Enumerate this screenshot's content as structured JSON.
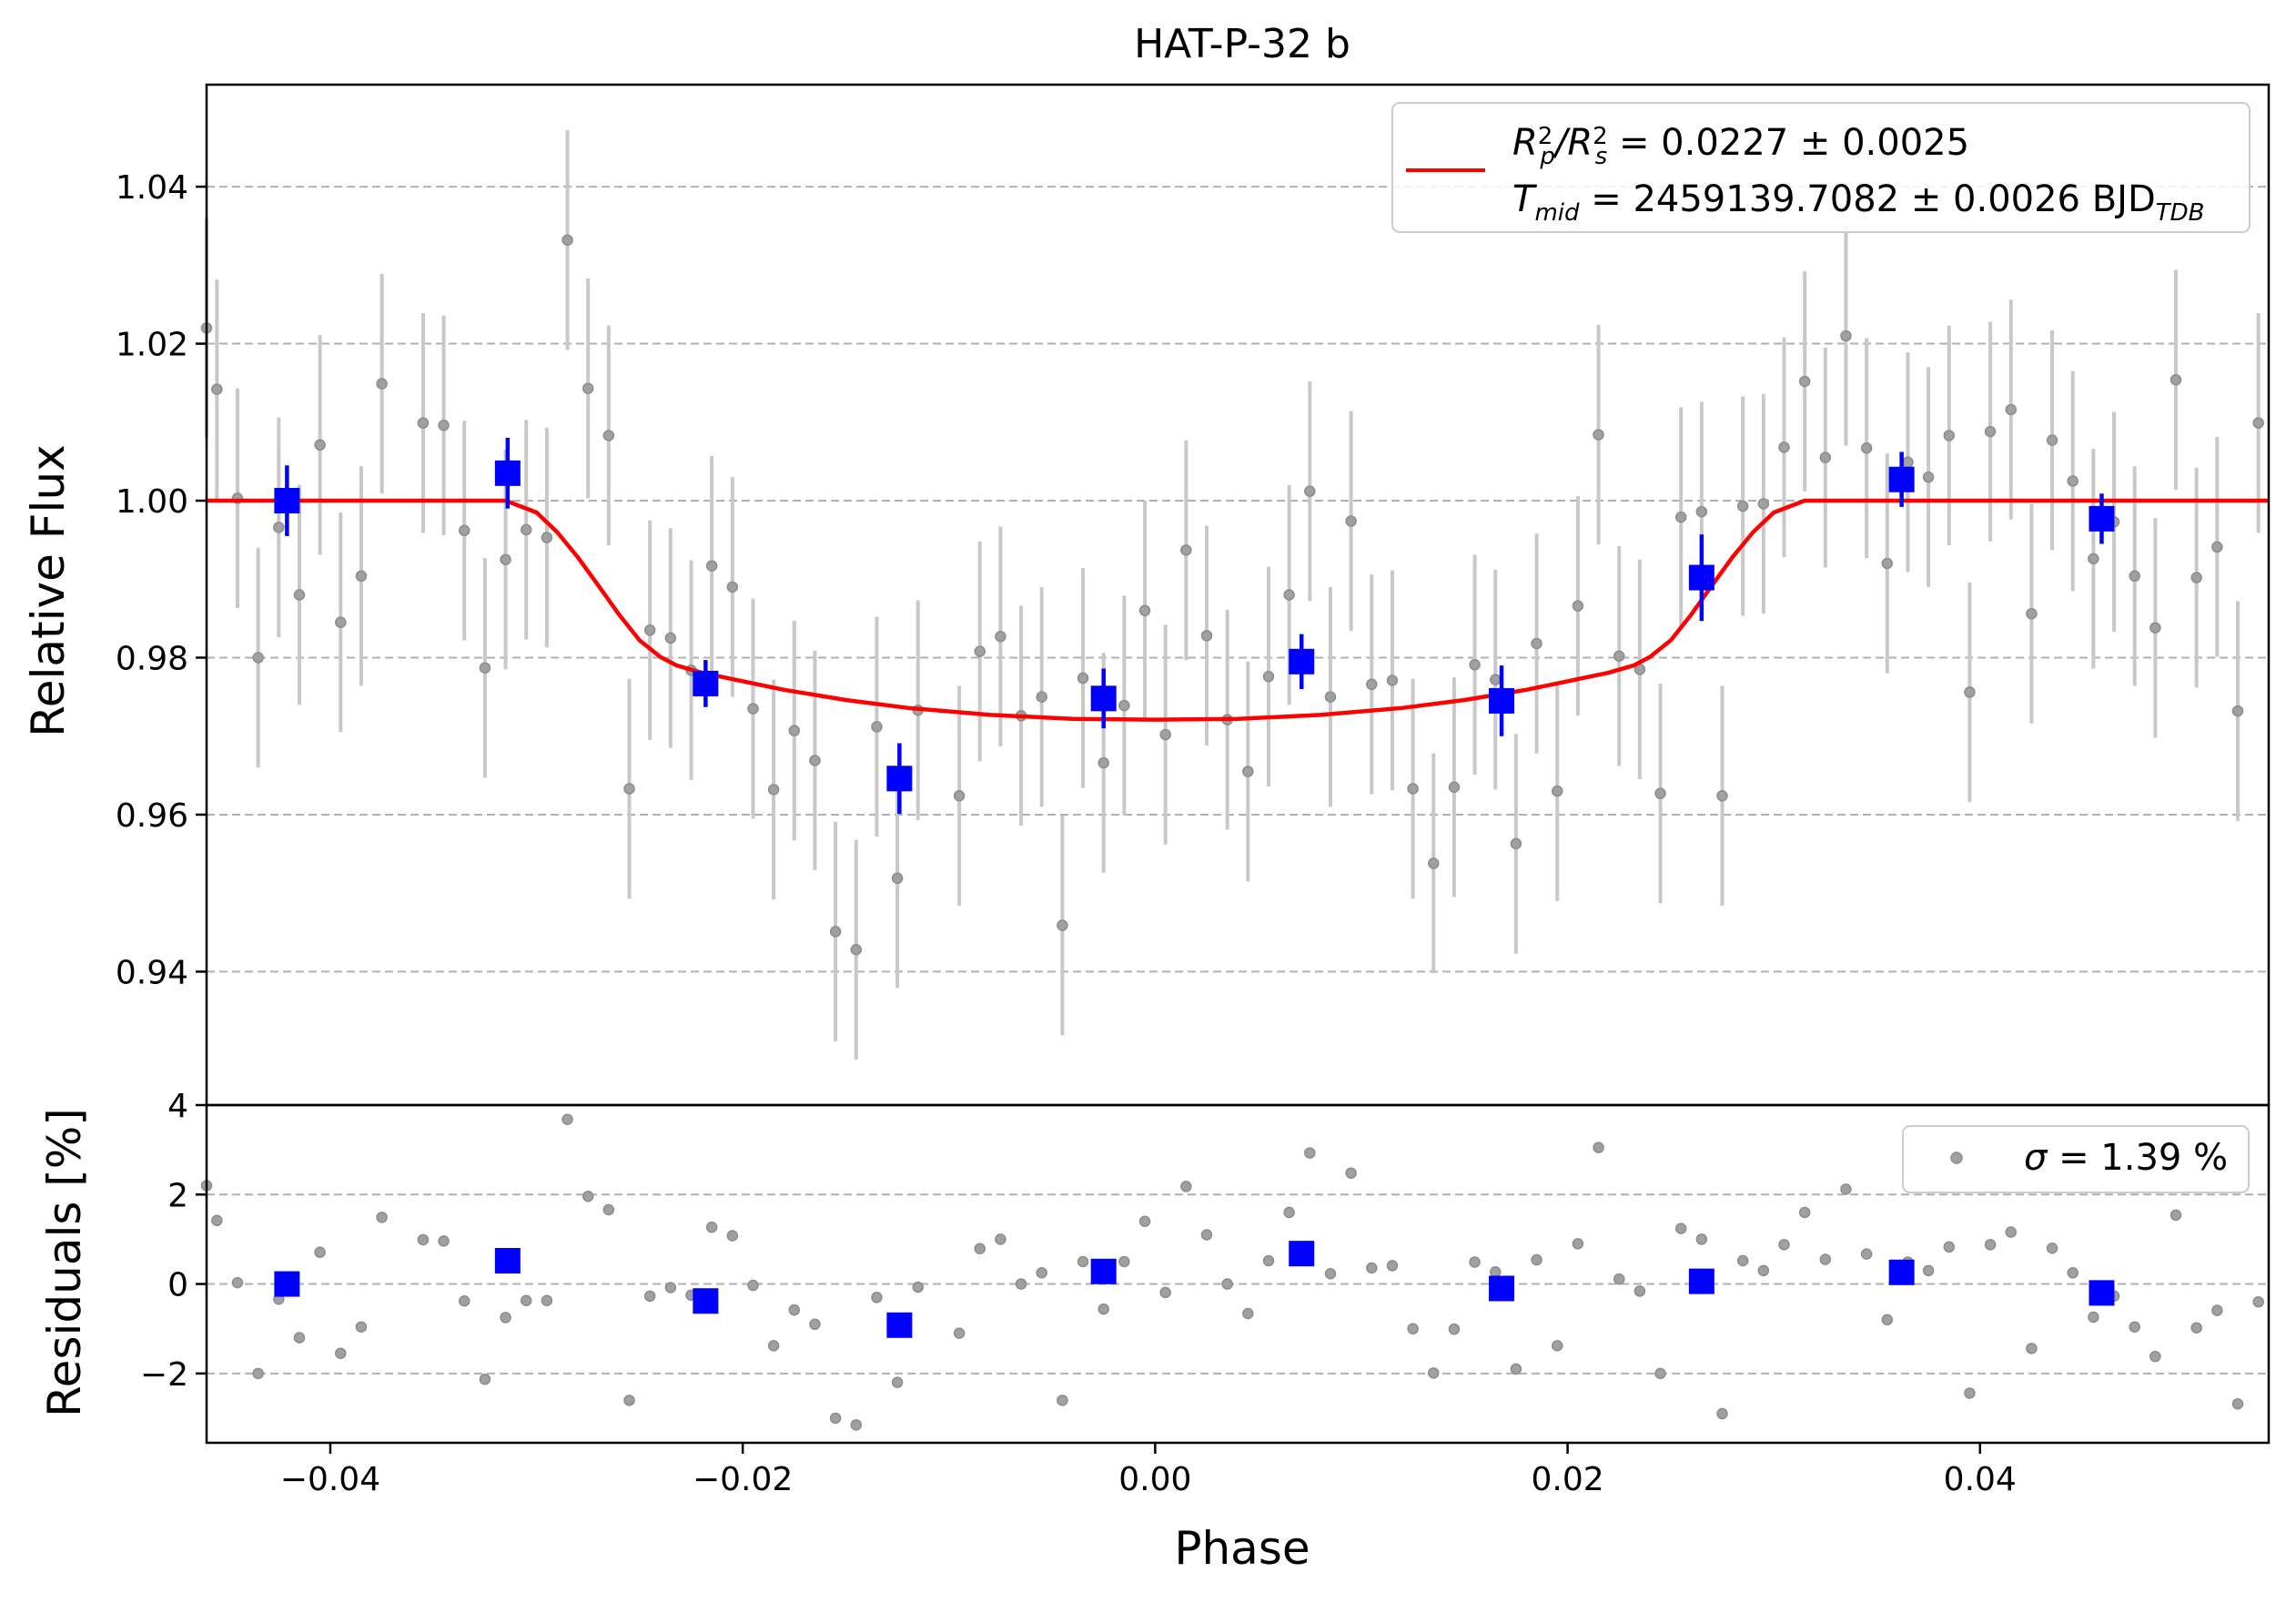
{
  "chart_data": [
    {
      "type": "scatter",
      "title": "HAT-P-32 b",
      "xlabel": "",
      "ylabel": "Relative Flux",
      "xlim": [
        -0.046,
        0.054
      ],
      "ylim": [
        0.923,
        1.053
      ],
      "xticks": [
        -0.04,
        -0.02,
        0.0,
        0.02,
        0.04
      ],
      "xtick_labels": [
        "−0.04",
        "−0.02",
        "0.00",
        "0.02",
        "0.04"
      ],
      "yticks": [
        0.94,
        0.96,
        0.98,
        1.0,
        1.02,
        1.04
      ],
      "ytick_labels": [
        "0.94",
        "0.96",
        "0.98",
        "1.00",
        "1.02",
        "1.04"
      ],
      "grid": "horizontal dashed",
      "legend": {
        "placement": "top-right",
        "line1_a": "R",
        "line1_b": "/R",
        "line1_c": " = 0.0227 ± 0.0025",
        "line1_sub1": "p",
        "line1_sup1": "2",
        "line1_sub2": "s",
        "line1_sup2": "2",
        "line2_a": "T",
        "line2_sub1": "mid",
        "line2_b": " = 2459139.7082 ± 0.0026 BJD",
        "line2_sub2": "TDB"
      },
      "colors": {
        "raw": "#a0a0a0",
        "errorbar": "#c8c8c8",
        "binned": "#0000ff",
        "model": "#ff0000",
        "grid": "#b0b0b0"
      },
      "series": [
        {
          "type": "scatter-errorbar",
          "x": [
            -0.046,
            -0.0455,
            -0.0445,
            -0.0435,
            -0.0425,
            -0.0415,
            -0.0405,
            -0.0395,
            -0.0385,
            -0.0375,
            -0.0355,
            -0.0345,
            -0.0335,
            -0.0325,
            -0.0315,
            -0.0305,
            -0.0295,
            -0.0285,
            -0.0275,
            -0.0265,
            -0.0255,
            -0.0245,
            -0.0235,
            -0.0225,
            -0.0215,
            -0.0205,
            -0.0195,
            -0.0185,
            -0.0175,
            -0.0165,
            -0.0155,
            -0.0145,
            -0.0135,
            -0.0125,
            -0.0115,
            -0.0095,
            -0.0085,
            -0.0075,
            -0.0065,
            -0.0055,
            -0.0045,
            -0.0035,
            -0.0025,
            -0.0015,
            -0.0005,
            0.0005,
            0.0015,
            0.0025,
            0.0035,
            0.0045,
            0.0055,
            0.0065,
            0.0075,
            0.0085,
            0.0095,
            0.0105,
            0.0115,
            0.0125,
            0.0135,
            0.0145,
            0.0155,
            0.0165,
            0.0175,
            0.0185,
            0.0195,
            0.0205,
            0.0215,
            0.0225,
            0.0235,
            0.0245,
            0.0255,
            0.0265,
            0.0275,
            0.0285,
            0.0295,
            0.0305,
            0.0315,
            0.0325,
            0.0335,
            0.0345,
            0.0355,
            0.0365,
            0.0375,
            0.0385,
            0.0395,
            0.0405,
            0.0415,
            0.0425,
            0.0435,
            0.0445,
            0.0455,
            0.0465,
            0.0475,
            0.0485,
            0.0495,
            0.0505,
            0.0515,
            0.0525,
            0.0535
          ],
          "y": [
            1.022,
            1.0142,
            1.0003,
            0.98,
            0.9966,
            0.988,
            1.0071,
            0.9845,
            0.9904,
            1.0149,
            1.0099,
            1.0096,
            0.9962,
            0.9787,
            0.9925,
            0.9963,
            0.9953,
            1.0332,
            1.0143,
            1.0083,
            0.9633,
            0.9835,
            0.9825,
            0.9784,
            0.9917,
            0.989,
            0.9735,
            0.9632,
            0.9707,
            0.9669,
            0.9451,
            0.9428,
            0.9712,
            0.9519,
            0.9733,
            0.9624,
            0.9808,
            0.9827,
            0.9726,
            0.975,
            0.9459,
            0.9774,
            0.9666,
            0.9739,
            0.986,
            0.9702,
            0.9937,
            0.9828,
            0.9721,
            0.9655,
            0.9776,
            0.988,
            1.0012,
            0.975,
            0.9974,
            0.9766,
            0.9771,
            0.9633,
            0.9538,
            0.9635,
            0.9791,
            0.9772,
            0.9563,
            0.9818,
            0.963,
            0.9866,
            1.0084,
            0.9802,
            0.9785,
            0.9627,
            0.9979,
            0.9986,
            0.9624,
            0.9993,
            0.9996,
            1.0068,
            1.0152,
            1.0055,
            1.021,
            1.0067,
            0.992,
            1.0049,
            1.003,
            1.0083,
            0.9756,
            1.0088,
            1.0116,
            0.9856,
            1.0077,
            1.0025,
            0.9926,
            0.9973,
            0.9904,
            0.9838,
            1.0154,
            0.9902,
            0.9941,
            0.9732,
            1.0099
          ],
          "yerr": [
            0.014,
            0.014,
            0.014,
            0.014,
            0.014,
            0.014,
            0.014,
            0.014,
            0.014,
            0.014,
            0.014,
            0.014,
            0.014,
            0.014,
            0.014,
            0.014,
            0.014,
            0.014,
            0.014,
            0.014,
            0.014,
            0.014,
            0.014,
            0.014,
            0.014,
            0.014,
            0.014,
            0.014,
            0.014,
            0.014,
            0.014,
            0.014,
            0.014,
            0.014,
            0.014,
            0.014,
            0.014,
            0.014,
            0.014,
            0.014,
            0.014,
            0.014,
            0.014,
            0.014,
            0.014,
            0.014,
            0.014,
            0.014,
            0.014,
            0.014,
            0.014,
            0.014,
            0.014,
            0.014,
            0.014,
            0.014,
            0.014,
            0.014,
            0.014,
            0.014,
            0.014,
            0.014,
            0.014,
            0.014,
            0.014,
            0.014,
            0.014,
            0.014,
            0.014,
            0.014,
            0.014,
            0.014,
            0.014,
            0.014,
            0.014,
            0.014,
            0.014,
            0.014,
            0.014,
            0.014,
            0.014,
            0.014,
            0.014,
            0.014,
            0.014,
            0.014,
            0.014,
            0.014,
            0.014,
            0.014,
            0.014,
            0.014,
            0.014,
            0.014,
            0.014,
            0.014,
            0.014,
            0.014,
            0.014
          ]
        },
        {
          "type": "binned",
          "x": [
            -0.0421,
            -0.0314,
            -0.0218,
            -0.0124,
            -0.0025,
            0.0071,
            0.0168,
            0.0265,
            0.0362,
            0.0459
          ],
          "y": [
            1.0,
            1.0035,
            0.9767,
            0.9646,
            0.9748,
            0.9795,
            0.9745,
            0.9902,
            1.0027,
            0.9977
          ],
          "yerr": [
            0.0045,
            0.0045,
            0.003,
            0.0045,
            0.0038,
            0.0035,
            0.0045,
            0.0055,
            0.0035,
            0.0032
          ]
        },
        {
          "type": "line",
          "x": [
            -0.046,
            -0.0315,
            -0.03,
            -0.029,
            -0.028,
            -0.027,
            -0.026,
            -0.025,
            -0.024,
            -0.0232,
            -0.022,
            -0.02,
            -0.018,
            -0.015,
            -0.012,
            -0.008,
            -0.004,
            0.0,
            0.004,
            0.008,
            0.012,
            0.015,
            0.018,
            0.02,
            0.022,
            0.0232,
            0.024,
            0.025,
            0.026,
            0.027,
            0.028,
            0.029,
            0.03,
            0.0315,
            0.054
          ],
          "y": [
            1.0,
            1.0,
            0.9985,
            0.996,
            0.9928,
            0.9892,
            0.9855,
            0.9822,
            0.9801,
            0.979,
            0.9781,
            0.977,
            0.9759,
            0.9746,
            0.9736,
            0.9727,
            0.9722,
            0.9721,
            0.9722,
            0.9727,
            0.9736,
            0.9746,
            0.9759,
            0.977,
            0.9781,
            0.979,
            0.9801,
            0.9822,
            0.9855,
            0.9892,
            0.9928,
            0.996,
            0.9985,
            1.0,
            1.0
          ]
        }
      ]
    },
    {
      "type": "scatter",
      "title": "",
      "xlabel": "Phase",
      "ylabel": "Residuals [%]",
      "xlim": [
        -0.046,
        0.054
      ],
      "ylim": [
        -3.55,
        4.0
      ],
      "xticks": [
        -0.04,
        -0.02,
        0.0,
        0.02,
        0.04
      ],
      "xtick_labels": [
        "−0.04",
        "−0.02",
        "0.00",
        "0.02",
        "0.04"
      ],
      "yticks": [
        -2,
        0,
        2,
        4
      ],
      "ytick_labels": [
        "−2",
        "0",
        "2",
        "4"
      ],
      "grid": "horizontal dashed",
      "legend": {
        "placement": "top-right",
        "sigma_symbol": "σ",
        "sigma_text": " = 1.39 %"
      },
      "series": [
        {
          "type": "scatter",
          "x": [
            -0.046,
            -0.0455,
            -0.0445,
            -0.0435,
            -0.0425,
            -0.0415,
            -0.0405,
            -0.0395,
            -0.0385,
            -0.0375,
            -0.0355,
            -0.0345,
            -0.0335,
            -0.0325,
            -0.0315,
            -0.0305,
            -0.0295,
            -0.0285,
            -0.0275,
            -0.0265,
            -0.0255,
            -0.0245,
            -0.0235,
            -0.0225,
            -0.0215,
            -0.0205,
            -0.0195,
            -0.0185,
            -0.0175,
            -0.0165,
            -0.0155,
            -0.0145,
            -0.0135,
            -0.0125,
            -0.0115,
            -0.0095,
            -0.0085,
            -0.0075,
            -0.0065,
            -0.0055,
            -0.0045,
            -0.0035,
            -0.0025,
            -0.0015,
            -0.0005,
            0.0005,
            0.0015,
            0.0025,
            0.0035,
            0.0045,
            0.0055,
            0.0065,
            0.0075,
            0.0085,
            0.0095,
            0.0105,
            0.0115,
            0.0125,
            0.0135,
            0.0145,
            0.0155,
            0.0165,
            0.0175,
            0.0185,
            0.0195,
            0.0205,
            0.0215,
            0.0225,
            0.0235,
            0.0245,
            0.0255,
            0.0265,
            0.0275,
            0.0285,
            0.0295,
            0.0305,
            0.0315,
            0.0325,
            0.0335,
            0.0345,
            0.0355,
            0.0365,
            0.0375,
            0.0385,
            0.0395,
            0.0405,
            0.0415,
            0.0425,
            0.0435,
            0.0445,
            0.0455,
            0.0465,
            0.0475,
            0.0485,
            0.0495,
            0.0505,
            0.0515,
            0.0525,
            0.0535
          ],
          "y": [
            2.2,
            1.42,
            0.03,
            -2.0,
            -0.34,
            -1.2,
            0.71,
            -1.55,
            -0.96,
            1.49,
            0.99,
            0.96,
            -0.38,
            -2.13,
            -0.75,
            -0.37,
            -0.37,
            3.68,
            1.96,
            1.66,
            -2.6,
            -0.27,
            -0.08,
            -0.25,
            1.27,
            1.08,
            -0.03,
            -1.38,
            -0.58,
            -0.9,
            -3.0,
            -3.15,
            -0.3,
            -2.2,
            -0.07,
            -1.1,
            0.79,
            1.0,
            0.0,
            0.25,
            -2.6,
            0.5,
            -0.56,
            0.5,
            1.4,
            -0.19,
            2.18,
            1.1,
            0.0,
            -0.66,
            0.52,
            1.6,
            2.93,
            0.23,
            2.48,
            0.36,
            0.41,
            -1.0,
            -1.99,
            -1.01,
            0.49,
            0.27,
            -1.9,
            0.54,
            -1.38,
            0.9,
            3.05,
            0.11,
            -0.16,
            -2.0,
            1.24,
            1.0,
            -2.9,
            0.52,
            0.3,
            0.88,
            1.6,
            0.55,
            2.12,
            0.67,
            -0.8,
            0.49,
            0.3,
            0.83,
            -2.44,
            0.88,
            1.16,
            -1.44,
            0.8,
            0.25,
            -0.74,
            -0.27,
            -0.96,
            -1.62,
            1.54,
            -0.98,
            -0.59,
            -2.68,
            -0.4
          ]
        },
        {
          "type": "binned",
          "x": [
            -0.0421,
            -0.0314,
            -0.0218,
            -0.0124,
            -0.0025,
            0.0071,
            0.0168,
            0.0265,
            0.0362,
            0.0459
          ],
          "y": [
            0.0,
            0.52,
            -0.38,
            -0.92,
            0.28,
            0.68,
            -0.1,
            0.06,
            0.26,
            -0.2
          ]
        }
      ]
    }
  ],
  "xlabel_text": "Phase"
}
